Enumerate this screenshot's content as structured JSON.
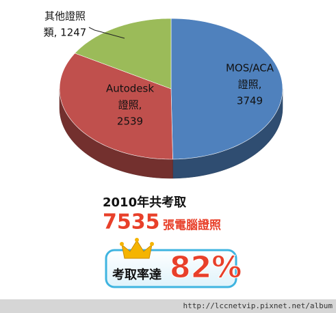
{
  "chart_data": {
    "type": "pie3d",
    "values": [
      3749,
      2539,
      1247
    ],
    "value_labels": [
      [
        "MOS/ACA",
        "證照,",
        "3749"
      ],
      [
        "Autodesk",
        "證照,",
        "2539"
      ],
      [
        "其他證照",
        "類, 1247"
      ]
    ],
    "colors": [
      "#4f81bd",
      "#c0504d",
      "#9bbb59"
    ],
    "annotations": {
      "headline": "2010年共考取",
      "count": "7535",
      "count_unit": "張電腦證照",
      "rate_label": "考取率達",
      "rate": "82%"
    },
    "watermark": "http://lccnetvip.pixnet.net/album"
  }
}
